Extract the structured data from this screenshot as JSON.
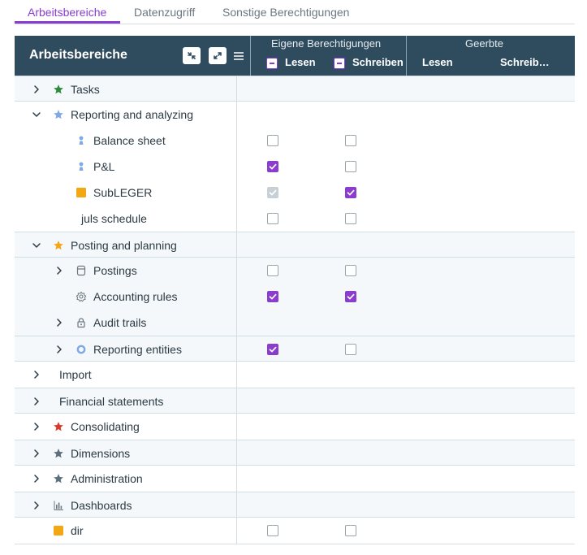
{
  "tabs": [
    {
      "label": "Arbeitsbereiche"
    },
    {
      "label": "Datenzugriff"
    },
    {
      "label": "Sonstige Berechtigungen"
    }
  ],
  "header": {
    "title": "Arbeitsbereiche",
    "own_group": "Eigene Berechtigungen",
    "inherited_group": "Geerbte",
    "own_read": "Lesen",
    "own_write": "Schreiben",
    "inh_read": "Lesen",
    "inh_write": "Schreib…"
  },
  "colors": {
    "accent": "#8a3ccf",
    "header_bg": "#2f4b5e",
    "star_green": "#2e8b3e",
    "star_blue": "#7ea9e6",
    "star_orange": "#f3a712",
    "star_red": "#d93a2b",
    "star_gray": "#5b6f7d"
  },
  "rows": [
    {
      "label": "Tasks",
      "expander": "collapsed",
      "icon": "star-icon-green",
      "read": null,
      "write": null
    },
    {
      "label": "Reporting and analyzing",
      "expander": "expanded",
      "icon": "star-icon-blue",
      "read": null,
      "write": null
    },
    {
      "label": "Balance sheet",
      "expander": "none",
      "icon": "person-icon",
      "read": "unchecked",
      "write": "unchecked"
    },
    {
      "label": "P&L",
      "expander": "none",
      "icon": "person-icon",
      "read": "checked",
      "write": "unchecked"
    },
    {
      "label": "SubLEGER",
      "expander": "none",
      "icon": "square-icon-orange",
      "read": "disabled-checked",
      "write": "checked"
    },
    {
      "label": "juls schedule",
      "expander": "none",
      "icon": "none",
      "read": "unchecked",
      "write": "unchecked"
    },
    {
      "label": "Posting and planning",
      "expander": "expanded",
      "icon": "star-icon-orange",
      "read": null,
      "write": null
    },
    {
      "label": "Postings",
      "expander": "collapsed",
      "icon": "database-icon",
      "read": "unchecked",
      "write": "unchecked"
    },
    {
      "label": "Accounting rules",
      "expander": "none",
      "icon": "gear-icon",
      "read": "checked",
      "write": "checked"
    },
    {
      "label": "Audit trails",
      "expander": "collapsed",
      "icon": "lock-icon",
      "read": null,
      "write": null
    },
    {
      "label": "Reporting entities",
      "expander": "collapsed",
      "icon": "circle-icon-blue",
      "read": "checked",
      "write": "unchecked"
    },
    {
      "label": "Import",
      "expander": "collapsed",
      "icon": "none",
      "read": null,
      "write": null
    },
    {
      "label": "Financial statements",
      "expander": "collapsed",
      "icon": "none",
      "read": null,
      "write": null
    },
    {
      "label": "Consolidating",
      "expander": "collapsed",
      "icon": "star-icon-red",
      "read": null,
      "write": null
    },
    {
      "label": "Dimensions",
      "expander": "collapsed",
      "icon": "star-icon-gray",
      "read": null,
      "write": null
    },
    {
      "label": "Administration",
      "expander": "collapsed",
      "icon": "star-icon-gray",
      "read": null,
      "write": null
    },
    {
      "label": "Dashboards",
      "expander": "collapsed",
      "icon": "chart-icon",
      "read": null,
      "write": null
    },
    {
      "label": "dir",
      "expander": "none",
      "icon": "square-icon-orange",
      "read": "unchecked",
      "write": "unchecked"
    }
  ]
}
